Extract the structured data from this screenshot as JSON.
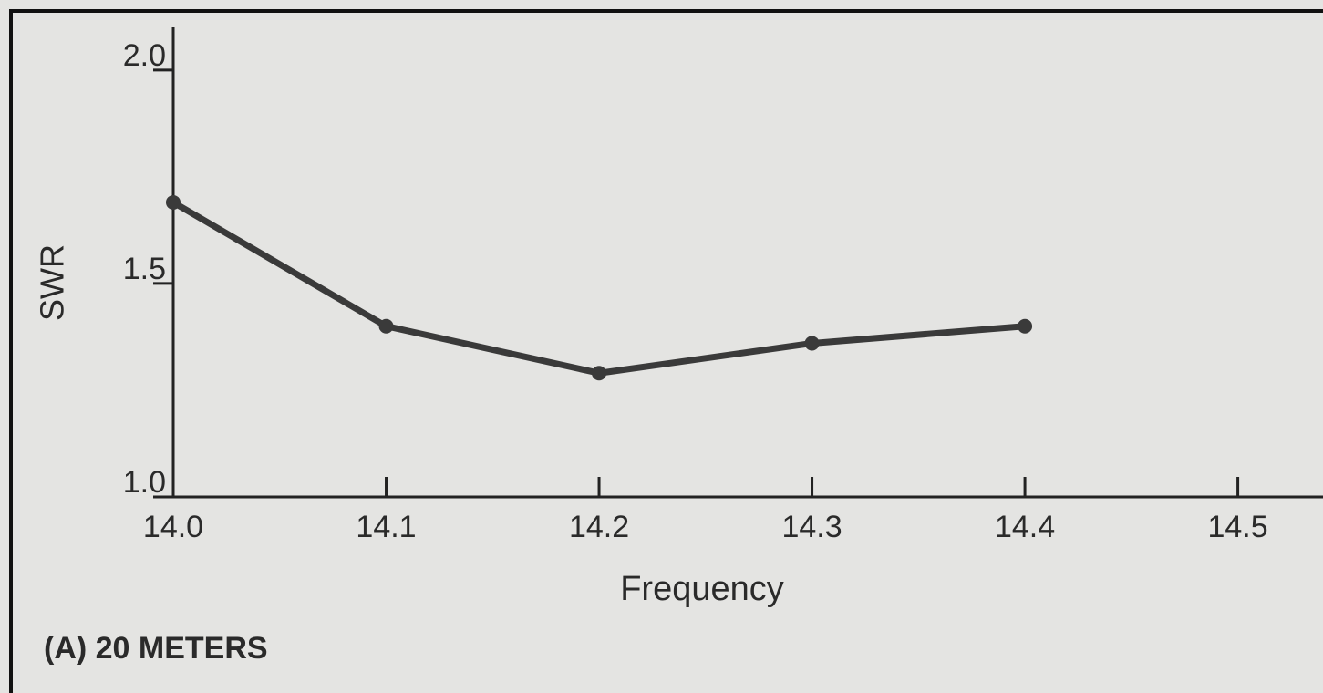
{
  "chart_data": {
    "type": "line",
    "xlabel": "Frequency",
    "ylabel": "SWR",
    "annotation": "(A) 20 METERS",
    "x": [
      14.0,
      14.1,
      14.2,
      14.3,
      14.4
    ],
    "series": [
      {
        "name": "SWR",
        "color": "#3a3a3a",
        "values": [
          1.69,
          1.4,
          1.29,
          1.36,
          1.4
        ]
      }
    ],
    "xlim": [
      14.0,
      14.54
    ],
    "xticks": [
      {
        "value": 14.0,
        "label": "14.0"
      },
      14.1,
      14.2,
      14.3,
      14.4,
      14.5
    ],
    "ylim": [
      1.0,
      2.1
    ],
    "yticks": [
      {
        "value": 1.0,
        "label": "1.0"
      },
      1.5,
      {
        "value": 2.0,
        "label": "2.0"
      }
    ]
  }
}
